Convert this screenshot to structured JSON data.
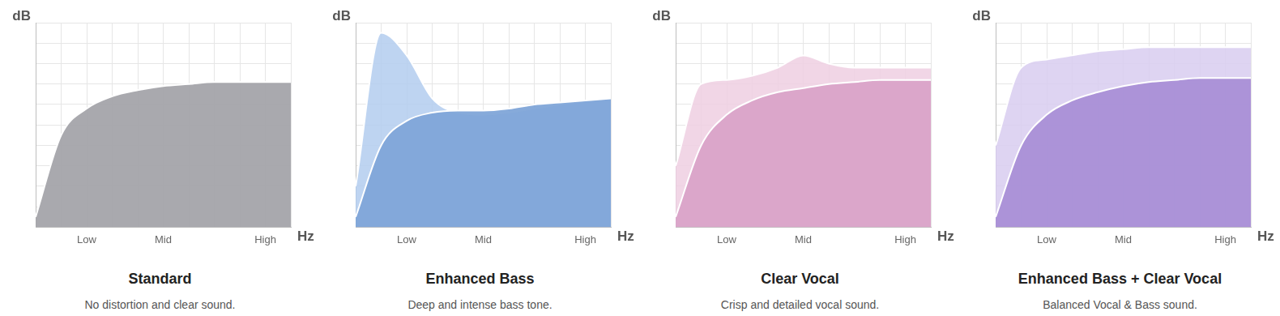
{
  "chart_data": [
    {
      "type": "line",
      "title": "Standard",
      "subtitle": "No distortion and clear sound.",
      "xlabel": "Hz",
      "ylabel": "dB",
      "categories": [
        null,
        null,
        "Low",
        null,
        null,
        "Mid",
        null,
        null,
        null,
        "High",
        null
      ],
      "series": [
        {
          "color": "#a4a4aa",
          "values": [
            5,
            45,
            58,
            64,
            67,
            69,
            70,
            71,
            71,
            71,
            71
          ]
        }
      ],
      "ylim": [
        0,
        100
      ],
      "yticks": [
        0,
        10,
        20,
        30,
        40,
        50,
        60,
        70,
        80,
        90,
        100
      ],
      "grid": true,
      "tick_labels": "x"
    },
    {
      "type": "line",
      "title": "Enhanced Bass",
      "subtitle": "Deep and intense bass tone.",
      "xlabel": "Hz",
      "ylabel": "dB",
      "categories": [
        null,
        null,
        "Low",
        null,
        null,
        "Mid",
        null,
        null,
        null,
        "High",
        null
      ],
      "series": [
        {
          "color": "#7fa5d8",
          "values": [
            5,
            40,
            52,
            56,
            57,
            57,
            58,
            60,
            61,
            62,
            63
          ]
        },
        {
          "color": "#b3cdee",
          "values": [
            20,
            95,
            84,
            63,
            56,
            55,
            56,
            58,
            60,
            62,
            63
          ]
        }
      ],
      "ylim": [
        0,
        100
      ],
      "yticks": [
        0,
        10,
        20,
        30,
        40,
        50,
        60,
        70,
        80,
        90,
        100
      ],
      "grid": true,
      "tick_labels": "x"
    },
    {
      "type": "line",
      "title": "Clear Vocal",
      "subtitle": "Crisp and detailed vocal sound.",
      "xlabel": "Hz",
      "ylabel": "dB",
      "categories": [
        null,
        null,
        "Low",
        null,
        null,
        "Mid",
        null,
        null,
        null,
        "High",
        null
      ],
      "series": [
        {
          "color": "#d9a3c8",
          "values": [
            5,
            40,
            55,
            62,
            66,
            68,
            70,
            71,
            72,
            72,
            72
          ]
        },
        {
          "color": "#efcfe2",
          "values": [
            30,
            70,
            72,
            74,
            78,
            84,
            80,
            78,
            78,
            78,
            78
          ]
        }
      ],
      "ylim": [
        0,
        100
      ],
      "yticks": [
        0,
        10,
        20,
        30,
        40,
        50,
        60,
        70,
        80,
        90,
        100
      ],
      "grid": true,
      "tick_labels": "x"
    },
    {
      "type": "line",
      "title": "Enhanced Bass + Clear Vocal",
      "subtitle": "Balanced Vocal & Bass sound.",
      "xlabel": "Hz",
      "ylabel": "dB",
      "categories": [
        null,
        null,
        "Low",
        null,
        null,
        "Mid",
        null,
        null,
        null,
        "High",
        null
      ],
      "series": [
        {
          "color": "#a98fd6",
          "values": [
            5,
            40,
            55,
            62,
            66,
            69,
            71,
            72,
            73,
            73,
            73
          ]
        },
        {
          "color": "#d8cdf0",
          "values": [
            40,
            78,
            82,
            84,
            86,
            87,
            88,
            88,
            88,
            88,
            88
          ]
        }
      ],
      "ylim": [
        0,
        100
      ],
      "yticks": [
        0,
        10,
        20,
        30,
        40,
        50,
        60,
        70,
        80,
        90,
        100
      ],
      "grid": true,
      "tick_labels": "x"
    }
  ]
}
